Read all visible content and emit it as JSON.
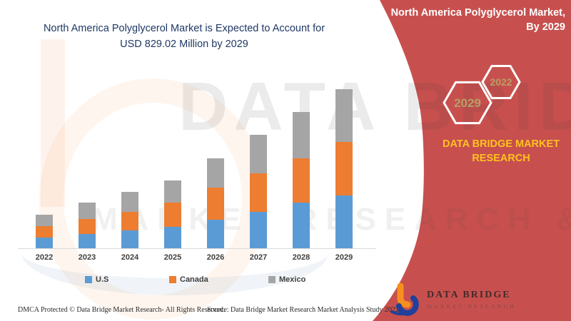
{
  "title": {
    "line1": "North America Polyglycerol Market is Expected to Account for",
    "line2": "USD 829.02 Million by 2029"
  },
  "banner": {
    "heading_line1": "North America Polyglycerol Market,",
    "heading_line2": "By 2029",
    "hex_large": "2029",
    "hex_small": "2022",
    "brand_line1": "DATA BRIDGE MARKET",
    "brand_line2": "RESEARCH"
  },
  "logo": {
    "name": "DATA BRIDGE",
    "subtitle": "MARKET RESEARCH"
  },
  "watermark": {
    "row1": "DATA BRIDGE",
    "row2": "MARKET RESEARCH &"
  },
  "footer": {
    "dmca": "DMCA Protected © Data Bridge Market Research- All Rights Reserved.",
    "source": "Source: Data Bridge Market Research Market Analysis Study 2022"
  },
  "colors": {
    "banner_red": "#c7504e",
    "title_blue": "#1f3864",
    "brand_yellow": "#ffc120",
    "hex_text": "#b79f66",
    "us_blue": "#5b9bd5",
    "canada_orange": "#ed7d31",
    "mexico_gray": "#a5a5a5"
  },
  "chart_data": {
    "type": "bar",
    "stacked": true,
    "title": "North America Polyglycerol Market is Expected to Account for USD 829.02 Million by 2029",
    "unit": "USD Million",
    "categories": [
      "2022",
      "2023",
      "2024",
      "2025",
      "2026",
      "2027",
      "2028",
      "2029"
    ],
    "series": [
      {
        "name": "U.S",
        "color": "#5b9bd5",
        "values": [
          58,
          76,
          97,
          113,
          153,
          193,
          239,
          276.3
        ]
      },
      {
        "name": "Canada",
        "color": "#ed7d31",
        "values": [
          61,
          80,
          96,
          126,
          164,
          197,
          232,
          276.4
        ]
      },
      {
        "name": "Mexico",
        "color": "#a5a5a5",
        "values": [
          58,
          83,
          101,
          115,
          154,
          201,
          238,
          276.3
        ]
      }
    ],
    "totals": [
      177,
      239,
      294,
      354,
      471,
      591,
      709,
      829.02
    ],
    "xlabel": "",
    "ylabel": "",
    "ylim": [
      0,
      850
    ],
    "grid": false,
    "y_axis_shown": false,
    "legend_position": "bottom"
  }
}
